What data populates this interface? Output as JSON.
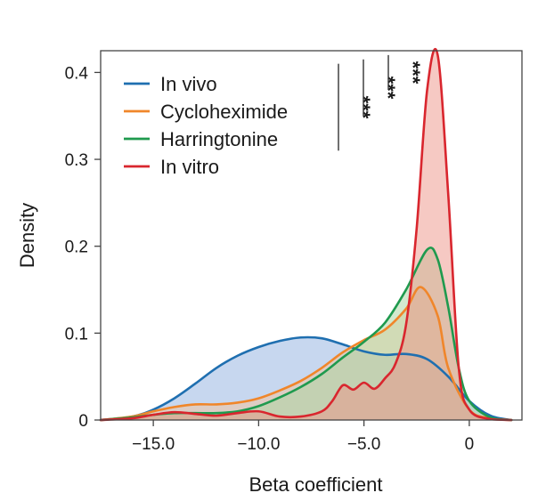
{
  "chart_data": {
    "type": "area",
    "title": "",
    "xlabel": "Beta coefficient",
    "ylabel": "Density",
    "xlim": [
      -17.5,
      2.5
    ],
    "ylim": [
      0,
      0.425
    ],
    "xticks": [
      -15.0,
      -10.0,
      -5.0,
      0
    ],
    "xtick_labels": [
      "−15.0",
      "−10.0",
      "−5.0",
      "0"
    ],
    "yticks": [
      0,
      0.1,
      0.2,
      0.3,
      0.4
    ],
    "ytick_labels": [
      "0",
      "0.1",
      "0.2",
      "0.3",
      "0.4"
    ],
    "legend_position": "top-left",
    "significance": {
      "label": "***",
      "brackets": [
        {
          "series": "Cycloheximide",
          "y_low": 0.31,
          "y_high": 0.41,
          "label": "***"
        },
        {
          "series": "Harringtonine",
          "y_low": 0.35,
          "y_high": 0.415,
          "label": "***"
        },
        {
          "series": "In vitro",
          "y_low": 0.38,
          "y_high": 0.42,
          "label": "***"
        }
      ]
    },
    "series": [
      {
        "name": "In vivo",
        "color": "#1f6fb0",
        "fill": "#8fb0e0",
        "x": [
          -17.5,
          -16,
          -15,
          -14,
          -13,
          -12,
          -11,
          -10,
          -9,
          -8,
          -7,
          -6,
          -5,
          -4,
          -3,
          -2,
          -1,
          0,
          1,
          2
        ],
        "y": [
          0.0,
          0.004,
          0.012,
          0.025,
          0.042,
          0.06,
          0.074,
          0.084,
          0.091,
          0.095,
          0.094,
          0.087,
          0.079,
          0.075,
          0.076,
          0.07,
          0.05,
          0.022,
          0.005,
          0.0
        ]
      },
      {
        "name": "Cycloheximide",
        "color": "#f0862a",
        "fill": "#f5c39a",
        "x": [
          -17.5,
          -16,
          -15,
          -14,
          -13,
          -12,
          -11,
          -10,
          -9,
          -8,
          -7,
          -6,
          -5,
          -4,
          -3,
          -2.3,
          -1.5,
          -1,
          0,
          1,
          2
        ],
        "y": [
          0.0,
          0.004,
          0.01,
          0.015,
          0.018,
          0.018,
          0.02,
          0.025,
          0.034,
          0.045,
          0.06,
          0.078,
          0.092,
          0.104,
          0.128,
          0.153,
          0.12,
          0.06,
          0.012,
          0.002,
          0.0
        ]
      },
      {
        "name": "Harringtonine",
        "color": "#1f9a4e",
        "fill": "#a8d6a0",
        "x": [
          -17.5,
          -16,
          -15,
          -14,
          -13,
          -12,
          -11,
          -10,
          -9,
          -8,
          -7,
          -6,
          -5,
          -4,
          -3,
          -2,
          -1.5,
          -1,
          -0.5,
          0,
          1,
          2
        ],
        "y": [
          0.0,
          0.003,
          0.006,
          0.008,
          0.008,
          0.008,
          0.01,
          0.016,
          0.026,
          0.038,
          0.053,
          0.072,
          0.09,
          0.112,
          0.15,
          0.196,
          0.185,
          0.13,
          0.06,
          0.022,
          0.003,
          0.0
        ]
      },
      {
        "name": "In vitro",
        "color": "#d9262e",
        "fill": "#ee9488",
        "x": [
          -17.5,
          -16,
          -15,
          -14,
          -13,
          -12,
          -11,
          -10,
          -9,
          -8,
          -7,
          -6.5,
          -6,
          -5.5,
          -5,
          -4.5,
          -4,
          -3.5,
          -3,
          -2.5,
          -2,
          -1.5,
          -1,
          -0.5,
          0,
          1,
          2
        ],
        "y": [
          0.0,
          0.002,
          0.006,
          0.009,
          0.007,
          0.005,
          0.008,
          0.01,
          0.004,
          0.004,
          0.01,
          0.022,
          0.04,
          0.035,
          0.043,
          0.036,
          0.048,
          0.065,
          0.11,
          0.22,
          0.38,
          0.42,
          0.26,
          0.06,
          0.012,
          0.001,
          0.0
        ]
      }
    ]
  }
}
